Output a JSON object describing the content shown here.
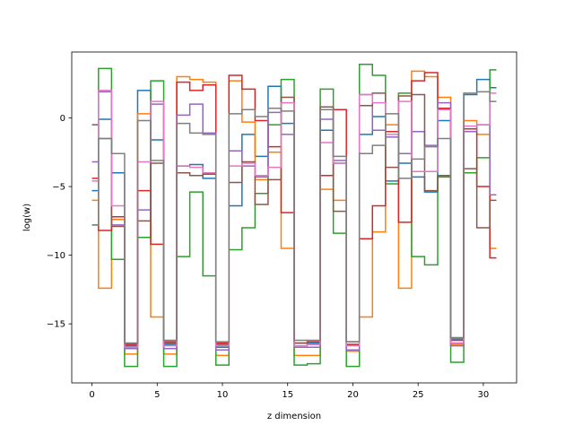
{
  "chart_data": {
    "type": "line",
    "drawstyle": "steps-mid",
    "title": "",
    "xlabel": "z dimension",
    "ylabel": "log(w)",
    "xlim": [
      -1.55,
      32.55
    ],
    "ylim": [
      -19.3,
      4.8
    ],
    "xticks": [
      0,
      5,
      10,
      15,
      20,
      25,
      30
    ],
    "yticks": [
      -15,
      -10,
      -5,
      0
    ],
    "grid": false,
    "x": [
      0,
      1,
      2,
      3,
      4,
      5,
      6,
      7,
      8,
      9,
      10,
      11,
      12,
      13,
      14,
      15,
      16,
      17,
      18,
      19,
      20,
      21,
      22,
      23,
      24,
      25,
      26,
      27,
      28,
      29,
      30,
      31
    ],
    "series": [
      {
        "color": "#1f77b4",
        "values": [
          -5.3,
          -0.1,
          -4.0,
          -16.6,
          2.0,
          -1.6,
          -16.5,
          -3.5,
          -3.4,
          -4.4,
          -16.7,
          -6.4,
          -1.2,
          -2.8,
          2.3,
          -0.4,
          -16.4,
          -16.4,
          -0.9,
          -3.3,
          -16.5,
          -1.2,
          0.1,
          -4.6,
          -3.3,
          -4.3,
          -5.4,
          -0.2,
          -16.1,
          1.7,
          2.8,
          2.2
        ]
      },
      {
        "color": "#ff7f0e",
        "values": [
          -6.0,
          -12.4,
          -7.4,
          -17.2,
          0.3,
          -14.5,
          -17.2,
          3.0,
          2.8,
          2.6,
          -17.3,
          2.7,
          -0.3,
          -4.5,
          -2.5,
          -9.5,
          -17.3,
          -17.3,
          -5.2,
          -6.0,
          -17.0,
          -14.5,
          -8.3,
          -0.5,
          -12.4,
          3.4,
          3.0,
          1.5,
          -16.5,
          -0.2,
          -1.2,
          -9.5
        ]
      },
      {
        "color": "#2ca02c",
        "values": [
          -7.8,
          3.6,
          -10.3,
          -18.1,
          -8.7,
          2.7,
          -18.1,
          -10.1,
          -5.4,
          -11.5,
          -18.0,
          -9.6,
          -8.0,
          -5.5,
          -0.5,
          2.8,
          -18.0,
          -17.9,
          2.1,
          -8.4,
          -18.1,
          3.9,
          3.1,
          -4.8,
          1.8,
          -10.1,
          -10.7,
          -4.3,
          -17.8,
          -4.0,
          -2.9,
          3.5
        ]
      },
      {
        "color": "#d62728",
        "values": [
          -4.4,
          -8.2,
          -7.2,
          -16.5,
          -5.3,
          -9.2,
          -16.3,
          2.6,
          2.0,
          2.4,
          -16.4,
          3.1,
          2.1,
          -0.2,
          -2.1,
          -6.9,
          -16.4,
          -16.3,
          -4.2,
          0.6,
          -16.5,
          -8.8,
          -6.4,
          -1.0,
          -7.6,
          2.7,
          3.3,
          0.7,
          -16.2,
          -0.8,
          -5.0,
          -10.2
        ]
      },
      {
        "color": "#9467bd",
        "values": [
          -3.2,
          1.9,
          -7.8,
          -16.8,
          -6.7,
          1.0,
          -16.8,
          0.2,
          1.0,
          -1.1,
          -16.9,
          -2.4,
          -3.5,
          -4.3,
          0.4,
          -1.2,
          -16.7,
          -16.7,
          -0.1,
          -3.1,
          -16.9,
          1.7,
          -0.9,
          -1.4,
          -2.6,
          -1.0,
          -2.0,
          1.1,
          -16.6,
          -1.0,
          -0.5,
          -5.6
        ]
      },
      {
        "color": "#8c564b",
        "values": [
          -0.5,
          -1.5,
          -7.9,
          -16.4,
          -7.5,
          -3.3,
          -16.4,
          -4.0,
          -4.2,
          -4.1,
          -16.5,
          -4.7,
          -3.2,
          -6.3,
          -4.5,
          1.5,
          -16.4,
          -16.5,
          0.8,
          -6.8,
          -16.3,
          0.9,
          1.8,
          -3.6,
          1.6,
          1.7,
          -5.3,
          -4.2,
          -16.4,
          -3.7,
          -8.0,
          -6.0
        ]
      },
      {
        "color": "#e377c2",
        "values": [
          -4.6,
          2.0,
          -6.4,
          -16.7,
          -3.2,
          1.2,
          -16.6,
          -3.5,
          -3.6,
          -4.0,
          -16.6,
          -3.5,
          -3.3,
          -4.2,
          -3.6,
          1.1,
          -16.6,
          -16.5,
          -1.8,
          -3.3,
          -16.6,
          1.7,
          1.1,
          -1.2,
          1.2,
          -3.9,
          -3.9,
          0.6,
          -16.4,
          -0.6,
          -0.5,
          1.8
        ]
      },
      {
        "color": "#7f7f7f",
        "values": [
          -7.8,
          -1.5,
          -2.6,
          -16.4,
          -0.2,
          -3.1,
          -16.2,
          -0.4,
          -1.1,
          -1.2,
          -16.3,
          0.3,
          0.6,
          0.1,
          0.7,
          0.5,
          -16.2,
          -16.2,
          0.6,
          -2.8,
          -16.3,
          -2.6,
          -2.0,
          0.3,
          -4.4,
          -3.0,
          -2.1,
          -1.5,
          -16.0,
          1.8,
          1.9,
          1.2
        ]
      }
    ]
  }
}
